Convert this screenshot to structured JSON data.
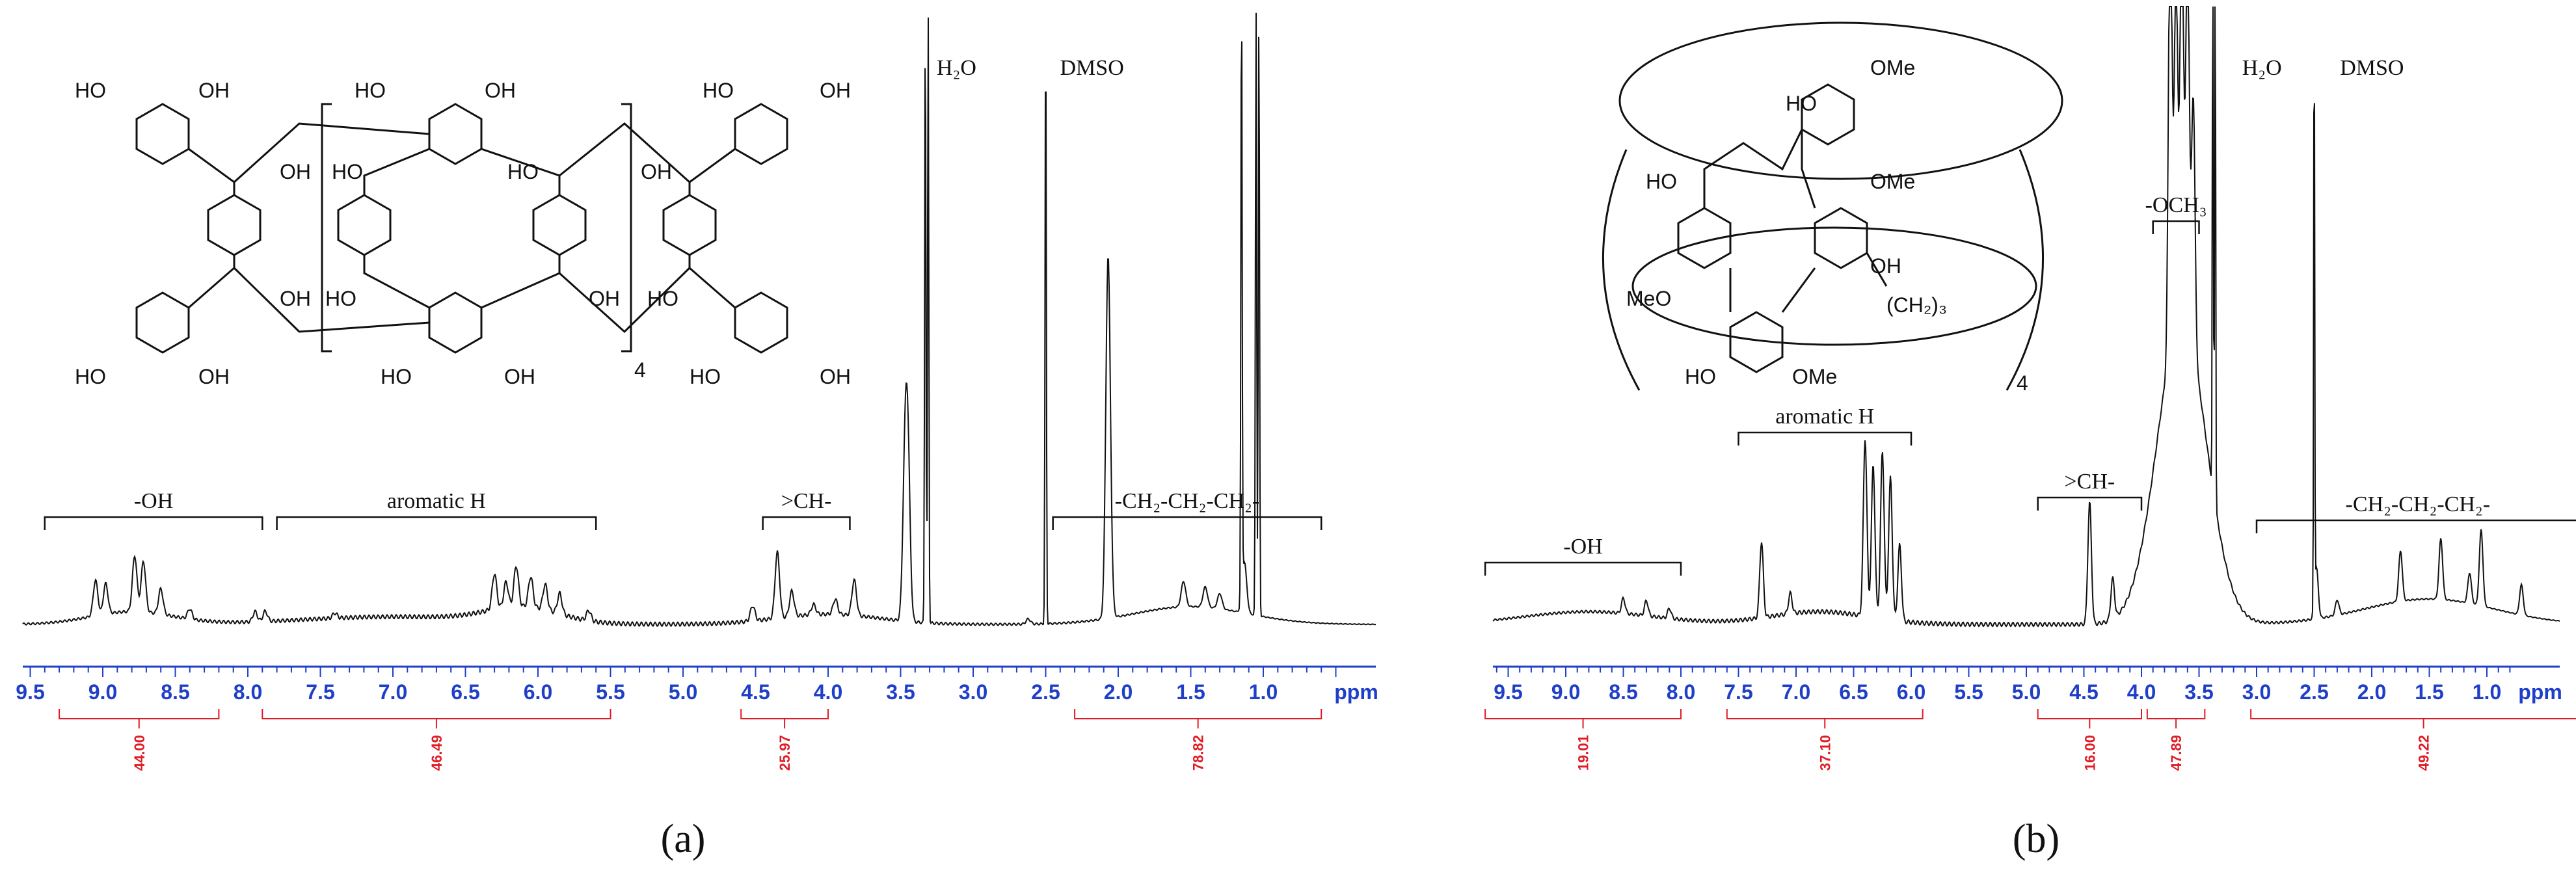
{
  "colors": {
    "spectrum": "#111111",
    "axis": "#1f3fc9",
    "integral": "#e01b24"
  },
  "chart_data": [
    {
      "type": "line",
      "panel_label": "(a)",
      "xlabel": "ppm",
      "x_reversed": true,
      "xlim": [
        10.0,
        0.0
      ],
      "x_ticks": [
        "9.5",
        "9.0",
        "8.5",
        "8.0",
        "7.5",
        "7.0",
        "6.5",
        "6.0",
        "5.5",
        "5.0",
        "4.5",
        "4.0",
        "3.5",
        "3.0",
        "2.5",
        "2.0",
        "1.5",
        "1.0"
      ],
      "solvent_labels": [
        {
          "text": "H₂O",
          "x": 3.35
        },
        {
          "text": "DMSO",
          "x": 2.5
        }
      ],
      "groups": [
        {
          "label": "-OH",
          "from": 9.4,
          "to": 7.9
        },
        {
          "label": "aromatic H",
          "from": 7.8,
          "to": 5.6
        },
        {
          "label": ">CH-",
          "from": 4.45,
          "to": 3.85
        },
        {
          "label": "-CH₂-CH₂-CH₂-",
          "from": 2.45,
          "to": 0.6
        }
      ],
      "integrals": [
        {
          "value": "44.00",
          "from": 9.3,
          "to": 8.2
        },
        {
          "value": "46.49",
          "from": 7.9,
          "to": 5.5
        },
        {
          "value": "25.97",
          "from": 4.6,
          "to": 4.0
        },
        {
          "value": "78.82",
          "from": 2.3,
          "to": 0.6
        }
      ],
      "peaks": [
        {
          "x": 9.05,
          "h": 0.07
        },
        {
          "x": 8.98,
          "h": 0.06
        },
        {
          "x": 8.78,
          "h": 0.11
        },
        {
          "x": 8.72,
          "h": 0.1
        },
        {
          "x": 8.6,
          "h": 0.05
        },
        {
          "x": 8.4,
          "h": 0.02
        },
        {
          "x": 7.95,
          "h": 0.02
        },
        {
          "x": 7.88,
          "h": 0.02
        },
        {
          "x": 7.4,
          "h": 0.01
        },
        {
          "x": 6.3,
          "h": 0.07
        },
        {
          "x": 6.22,
          "h": 0.05
        },
        {
          "x": 6.15,
          "h": 0.08
        },
        {
          "x": 6.05,
          "h": 0.06
        },
        {
          "x": 5.95,
          "h": 0.05
        },
        {
          "x": 5.85,
          "h": 0.04
        },
        {
          "x": 5.65,
          "h": 0.02
        },
        {
          "x": 4.52,
          "h": 0.03
        },
        {
          "x": 4.35,
          "h": 0.13
        },
        {
          "x": 4.25,
          "h": 0.05
        },
        {
          "x": 4.1,
          "h": 0.02
        },
        {
          "x": 3.95,
          "h": 0.03
        },
        {
          "x": 3.82,
          "h": 0.07
        },
        {
          "x": 3.47,
          "h": 0.28
        },
        {
          "x": 3.45,
          "h": 0.3
        },
        {
          "x": 3.33,
          "h": 1.2
        },
        {
          "x": 3.31,
          "h": 1.2
        },
        {
          "x": 2.62,
          "h": 0.01
        },
        {
          "x": 2.5,
          "h": 1.2
        },
        {
          "x": 2.07,
          "h": 0.7
        },
        {
          "x": 2.05,
          "h": 0.03
        },
        {
          "x": 1.55,
          "h": 0.05
        },
        {
          "x": 1.4,
          "h": 0.04
        },
        {
          "x": 1.3,
          "h": 0.03
        },
        {
          "x": 1.15,
          "h": 1.2
        },
        {
          "x": 1.13,
          "h": 0.1
        },
        {
          "x": 1.05,
          "h": 1.2
        },
        {
          "x": 1.03,
          "h": 1.2
        }
      ],
      "broad_bands": [
        {
          "x": 8.8,
          "w": 0.4,
          "h": 0.025
        },
        {
          "x": 7.0,
          "w": 0.9,
          "h": 0.015
        },
        {
          "x": 6.1,
          "w": 0.35,
          "h": 0.03
        },
        {
          "x": 4.0,
          "w": 0.5,
          "h": 0.02
        },
        {
          "x": 1.5,
          "w": 0.55,
          "h": 0.035
        }
      ]
    },
    {
      "type": "line",
      "panel_label": "(b)",
      "xlabel": "ppm",
      "x_reversed": true,
      "xlim": [
        10.0,
        0.0
      ],
      "x_ticks": [
        "9.5",
        "9.0",
        "8.5",
        "8.0",
        "7.5",
        "7.0",
        "6.5",
        "6.0",
        "5.5",
        "5.0",
        "4.5",
        "4.0",
        "3.5",
        "3.0",
        "2.5",
        "2.0",
        "1.5",
        "1.0"
      ],
      "solvent_labels": [
        {
          "text": "H₂O",
          "x": 3.25
        },
        {
          "text": "DMSO",
          "x": 2.4
        }
      ],
      "groups": [
        {
          "label": "-OH",
          "from": 9.7,
          "to": 8.0
        },
        {
          "label": "aromatic H",
          "from": 7.5,
          "to": 6.0
        },
        {
          "label": ">CH-",
          "from": 4.9,
          "to": 4.0
        },
        {
          "label": "-OCH₃",
          "from": 3.9,
          "to": 3.5
        },
        {
          "label": "-CH₂-CH₂-CH₂-",
          "from": 3.0,
          "to": 0.2
        }
      ],
      "integrals": [
        {
          "value": "19.01",
          "from": 9.7,
          "to": 8.0
        },
        {
          "value": "37.10",
          "from": 7.6,
          "to": 5.9
        },
        {
          "value": "16.00",
          "from": 4.9,
          "to": 4.0
        },
        {
          "value": "47.89",
          "from": 3.95,
          "to": 3.45
        },
        {
          "value": "49.22",
          "from": 3.05,
          "to": 0.05
        }
      ],
      "peaks": [
        {
          "x": 8.5,
          "h": 0.03
        },
        {
          "x": 8.3,
          "h": 0.03
        },
        {
          "x": 8.1,
          "h": 0.02
        },
        {
          "x": 7.3,
          "h": 0.15
        },
        {
          "x": 7.05,
          "h": 0.04
        },
        {
          "x": 6.4,
          "h": 0.35
        },
        {
          "x": 6.33,
          "h": 0.3
        },
        {
          "x": 6.25,
          "h": 0.33
        },
        {
          "x": 6.18,
          "h": 0.28
        },
        {
          "x": 6.1,
          "h": 0.15
        },
        {
          "x": 4.45,
          "h": 0.24
        },
        {
          "x": 4.25,
          "h": 0.08
        },
        {
          "x": 3.75,
          "h": 0.9
        },
        {
          "x": 3.7,
          "h": 0.7
        },
        {
          "x": 3.65,
          "h": 0.8
        },
        {
          "x": 3.6,
          "h": 0.75
        },
        {
          "x": 3.55,
          "h": 0.5
        },
        {
          "x": 3.38,
          "h": 1.2
        },
        {
          "x": 3.36,
          "h": 1.2
        },
        {
          "x": 2.5,
          "h": 1.2
        },
        {
          "x": 2.48,
          "h": 0.1
        },
        {
          "x": 2.3,
          "h": 0.03
        },
        {
          "x": 1.75,
          "h": 0.1
        },
        {
          "x": 1.4,
          "h": 0.12
        },
        {
          "x": 1.15,
          "h": 0.06
        },
        {
          "x": 1.05,
          "h": 0.15
        },
        {
          "x": 0.7,
          "h": 0.06
        }
      ],
      "broad_bands": [
        {
          "x": 8.8,
          "w": 0.8,
          "h": 0.025
        },
        {
          "x": 6.8,
          "w": 0.6,
          "h": 0.025
        },
        {
          "x": 3.65,
          "w": 0.3,
          "h": 0.6
        },
        {
          "x": 1.5,
          "w": 0.8,
          "h": 0.05
        }
      ]
    }
  ],
  "structures": [
    {
      "labels": [
        "HO",
        "OH",
        "HO",
        "OH",
        "HO",
        "OH",
        "HO",
        "OH",
        "HO",
        "OH",
        "HO",
        "OH",
        "HO",
        "OH",
        "HO",
        "OH",
        "HO",
        "OH",
        "HO",
        "OH",
        "HO",
        "OH",
        "HO",
        "OH"
      ],
      "repeat": "4"
    },
    {
      "labels": [
        "HO",
        "OMe",
        "HO",
        "OMe",
        "MeO",
        "OH",
        "HO",
        "OMe"
      ],
      "chain": "(CH₂)₃",
      "repeat": "4"
    }
  ]
}
